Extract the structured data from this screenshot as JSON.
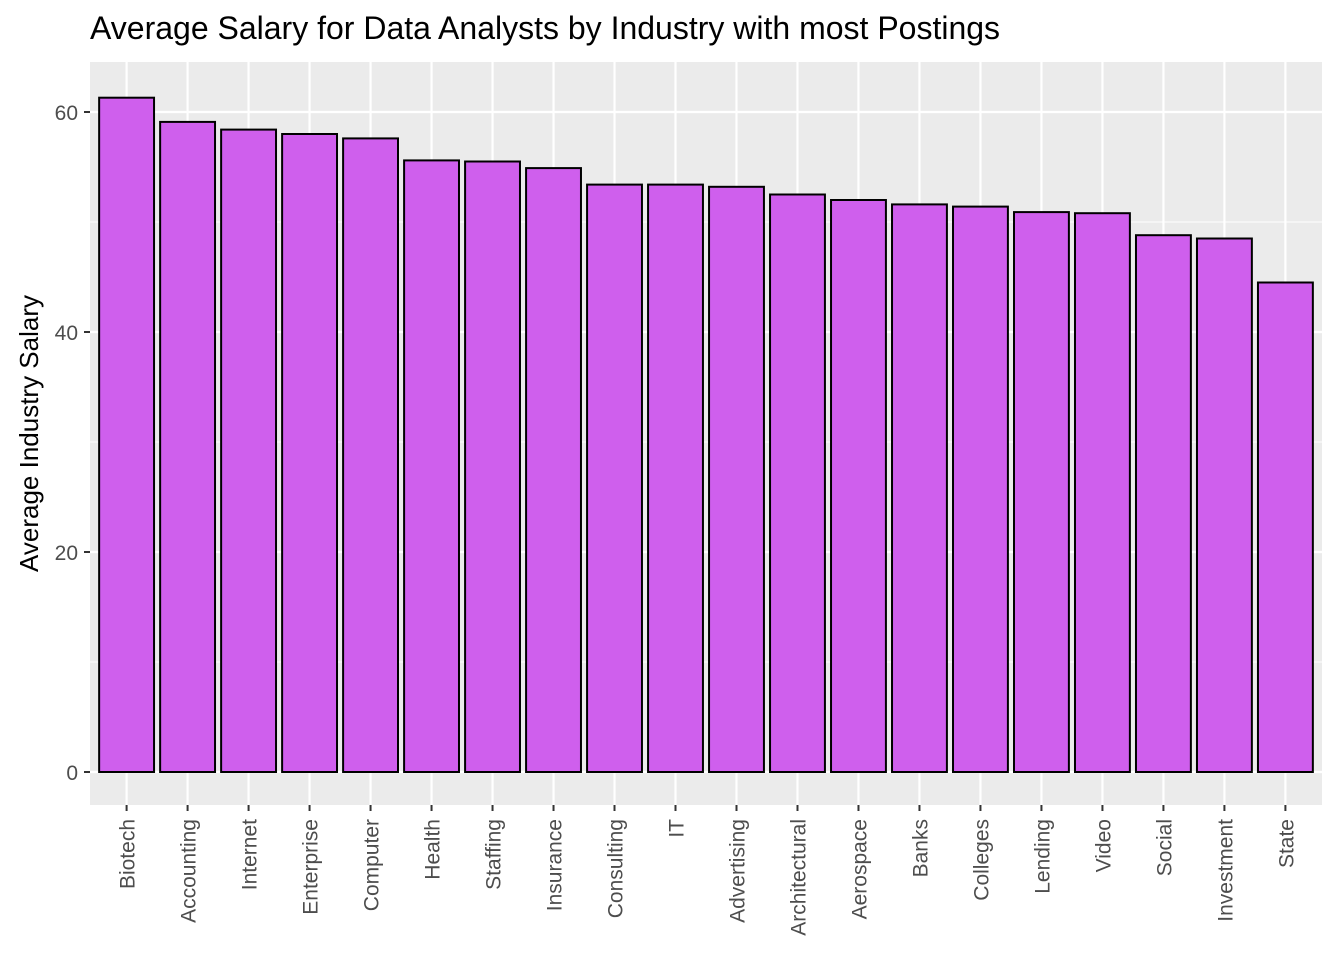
{
  "chart_data": {
    "type": "bar",
    "title": "Average Salary for Data Analysts by Industry with most Postings",
    "xlabel": "",
    "ylabel": "Average Industry Salary",
    "categories": [
      "Biotech",
      "Accounting",
      "Internet",
      "Enterprise",
      "Computer",
      "Health",
      "Staffing",
      "Insurance",
      "Consulting",
      "IT",
      "Advertising",
      "Architectural",
      "Aerospace",
      "Banks",
      "Colleges",
      "Lending",
      "Video",
      "Social",
      "Investment",
      "State"
    ],
    "values": [
      61.3,
      59.1,
      58.4,
      58.0,
      57.6,
      55.6,
      55.5,
      54.9,
      53.4,
      53.4,
      53.2,
      52.5,
      52.0,
      51.6,
      51.4,
      50.9,
      50.8,
      48.8,
      48.5,
      44.5
    ],
    "ylim": [
      0,
      60
    ],
    "yticks": [
      0,
      20,
      40,
      60
    ],
    "grid": true,
    "bar_fill": "#CF5FED",
    "bar_stroke": "#000000",
    "panel_background": "#EBEBEB",
    "grid_color": "#FFFFFF"
  }
}
